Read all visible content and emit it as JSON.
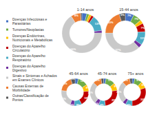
{
  "chart_data": [
    {
      "type": "pie",
      "title": "1-14 anos",
      "categories": [
        "Doenças Infecciosas e Parasitárias",
        "Tumores/Neoplasias",
        "Doenças Endócrinas, Nutricionais e Metabólicas",
        "Doenças do Aparelho Circulatório",
        "Doenças do Aparelho Respiratório",
        "Doenças do Aparelho Digestivo",
        "Sinais e Sintomas e Achados em Exames Clínicos",
        "Causas Externas de Morbilidade",
        "Outras/Classificação de Pontos"
      ],
      "values": [
        4,
        2,
        2,
        2,
        13,
        2,
        66,
        8,
        1
      ],
      "value_labels": [
        null,
        null,
        null,
        null,
        "13%",
        null,
        "66%",
        "8%",
        null
      ],
      "colors": [
        "#4472c4",
        "#70ad47",
        "#ffc000",
        "#c00000",
        "#4bacc6",
        "#7030a0",
        "#c9c9c9",
        "#ed7d31",
        "#595959"
      ],
      "data_labels": true,
      "legend": "left"
    },
    {
      "type": "pie",
      "title": "15-44 anos",
      "categories": [
        "Doenças Infecciosas e Parasitárias",
        "Tumores/Neoplasias",
        "Doenças Endócrinas, Nutricionais e Metabólicas",
        "Doenças do Aparelho Circulatório",
        "Doenças do Aparelho Respiratório",
        "Doenças do Aparelho Digestivo",
        "Sinais e Sintomas e Achados em Exames Clínicos",
        "Causas Externas de Morbilidade",
        "Outras/Classificação de Pontos"
      ],
      "values": [
        7,
        7,
        3,
        7,
        11,
        3,
        37,
        20,
        5
      ],
      "value_labels": [
        "7%",
        "7%",
        null,
        "7%",
        "11%",
        null,
        "37%",
        "20%",
        "5%"
      ],
      "colors": [
        "#4472c4",
        "#70ad47",
        "#ffc000",
        "#c00000",
        "#4bacc6",
        "#7030a0",
        "#c9c9c9",
        "#ed7d31",
        "#595959"
      ],
      "data_labels": true
    },
    {
      "type": "pie",
      "title": "45-64 anos",
      "categories": [
        "Doenças Infecciosas e Parasitárias",
        "Tumores/Neoplasias",
        "Doenças Endócrinas, Nutricionais e Metabólicas",
        "Doenças do Aparelho Circulatório",
        "Doenças do Aparelho Respiratório",
        "Doenças do Aparelho Digestivo",
        "Sinais e Sintomas e Achados em Exames Clínicos",
        "Causas Externas de Morbilidade",
        "Outras/Classificação de Pontos"
      ],
      "values": [
        4,
        12,
        8,
        18,
        9,
        5,
        21,
        18,
        5
      ],
      "value_labels": [
        null,
        "12%",
        "8%",
        "18%",
        "9%",
        "5%",
        "21%",
        "18%",
        "5%"
      ],
      "colors": [
        "#4472c4",
        "#70ad47",
        "#ffc000",
        "#c00000",
        "#4bacc6",
        "#7030a0",
        "#c9c9c9",
        "#ed7d31",
        "#595959"
      ],
      "data_labels": true
    },
    {
      "type": "pie",
      "title": "45-74 anos",
      "categories": [
        "Doenças Infecciosas e Parasitárias",
        "Tumores/Neoplasias",
        "Doenças Endócrinas, Nutricionais e Metabólicas",
        "Doenças do Aparelho Circulatório",
        "Doenças do Aparelho Respiratório",
        "Doenças do Aparelho Digestivo",
        "Sinais e Sintomas e Achados em Exames Clínicos",
        "Causas Externas de Morbilidade",
        "Outras/Classificação de Pontos"
      ],
      "values": [
        3,
        11,
        9,
        25,
        8,
        5,
        26,
        10,
        3
      ],
      "value_labels": [
        null,
        "11%",
        "9%",
        "25%",
        "8%",
        "5%",
        "26%",
        "10%",
        null
      ],
      "colors": [
        "#4472c4",
        "#70ad47",
        "#ffc000",
        "#c00000",
        "#4bacc6",
        "#7030a0",
        "#c9c9c9",
        "#ed7d31",
        "#595959"
      ],
      "data_labels": true
    },
    {
      "type": "pie",
      "title": "75+ anos",
      "categories": [
        "Doenças Infecciosas e Parasitárias",
        "Tumores/Neoplasias",
        "Doenças Endócrinas, Nutricionais e Metabólicas",
        "Doenças do Aparelho Circulatório",
        "Doenças do Aparelho Respiratório",
        "Doenças do Aparelho Digestivo",
        "Sinais e Sintomas e Achados em Exames Clínicos",
        "Causas Externas de Morbilidade",
        "Outras/Classificação de Pontos"
      ],
      "values": [
        3,
        9,
        8,
        30,
        8,
        4,
        26,
        9,
        3
      ],
      "value_labels": [
        null,
        "9%",
        "8%",
        "30%",
        "8%",
        null,
        "26%",
        "9%",
        null
      ],
      "colors": [
        "#4472c4",
        "#70ad47",
        "#ffc000",
        "#c00000",
        "#4bacc6",
        "#7030a0",
        "#c9c9c9",
        "#ed7d31",
        "#595959"
      ],
      "data_labels": true
    }
  ]
}
